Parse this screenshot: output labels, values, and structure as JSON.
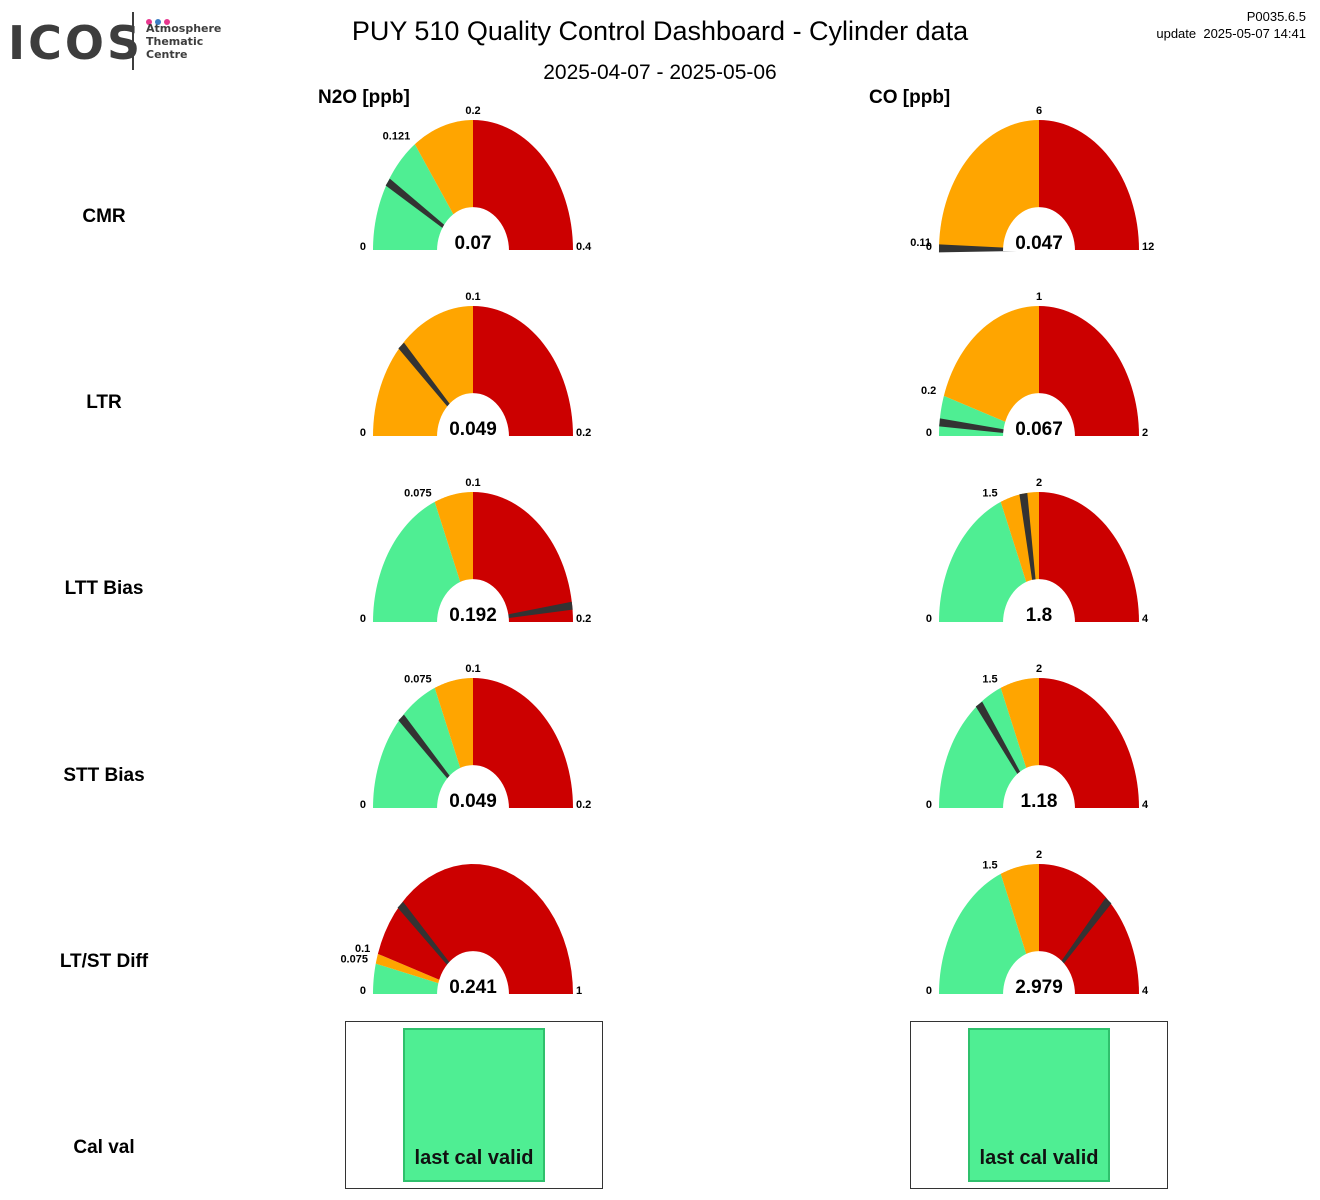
{
  "header": {
    "logo": {
      "text": "ICOS",
      "lines": [
        "Atmosphere",
        "Thematic",
        "Centre"
      ],
      "dot_colors": [
        "#e7368e",
        "#3a7cc3",
        "#e7368e"
      ]
    },
    "title": "PUY 510 Quality Control Dashboard - Cylinder data",
    "subtitle": "2025-04-07 - 2025-05-06",
    "version": "P0035.6.5",
    "update": "update  2025-05-07 14:41"
  },
  "colors": {
    "ok": "#4fee93",
    "warn": "#ffa500",
    "bad": "#cc0000",
    "needle": "#333333"
  },
  "columns": [
    {
      "header": "N2O [ppb]",
      "gauges": [
        {
          "row": "CMR",
          "min_label": "0",
          "max_label": "0.4",
          "min": 0,
          "max": 0.4,
          "value": 0.07,
          "value_label": "0.07",
          "thresholds": [
            0.121,
            0.2
          ],
          "threshold_labels": [
            "0.121",
            "0.2"
          ],
          "zones": [
            "ok",
            "warn",
            "bad"
          ]
        },
        {
          "row": "LTR",
          "min_label": "0",
          "max_label": "0.2",
          "min": 0,
          "max": 0.2,
          "value": 0.049,
          "value_label": "0.049",
          "thresholds": [
            0.1
          ],
          "threshold_labels": [
            "0.1"
          ],
          "zones": [
            "warn",
            "bad"
          ]
        },
        {
          "row": "LTT Bias",
          "min_label": "0",
          "max_label": "0.2",
          "min": 0,
          "max": 0.2,
          "value": 0.192,
          "value_label": "0.192",
          "thresholds": [
            0.075,
            0.1
          ],
          "threshold_labels": [
            "0.075",
            "0.1"
          ],
          "zones": [
            "ok",
            "warn",
            "bad"
          ]
        },
        {
          "row": "STT Bias",
          "min_label": "0",
          "max_label": "0.2",
          "min": 0,
          "max": 0.2,
          "value": 0.049,
          "value_label": "0.049",
          "thresholds": [
            0.075,
            0.1
          ],
          "threshold_labels": [
            "0.075",
            "0.1"
          ],
          "zones": [
            "ok",
            "warn",
            "bad"
          ]
        },
        {
          "row": "LT/ST Diff",
          "min_label": "0",
          "max_label": "1",
          "min": 0,
          "max": 1,
          "value": 0.241,
          "value_label": "0.241",
          "thresholds": [
            0.075,
            0.1
          ],
          "threshold_labels": [
            "0.075",
            "0.1"
          ],
          "zones": [
            "ok",
            "warn",
            "bad"
          ]
        }
      ],
      "cal": "last cal valid"
    },
    {
      "header": "CO [ppb]",
      "gauges": [
        {
          "row": "CMR",
          "min_label": "0",
          "max_label": "12",
          "min": 0,
          "max": 12,
          "value": 0.047,
          "value_label": "0.047",
          "thresholds": [
            0.11,
            6
          ],
          "threshold_labels": [
            "0.11",
            "6"
          ],
          "zones": [
            "ok",
            "warn",
            "bad"
          ]
        },
        {
          "row": "LTR",
          "min_label": "0",
          "max_label": "2",
          "min": 0,
          "max": 2,
          "value": 0.067,
          "value_label": "0.067",
          "thresholds": [
            0.2,
            1
          ],
          "threshold_labels": [
            "0.2",
            "1"
          ],
          "zones": [
            "ok",
            "warn",
            "bad"
          ]
        },
        {
          "row": "LTT Bias",
          "min_label": "0",
          "max_label": "4",
          "min": 0,
          "max": 4,
          "value": 1.8,
          "value_label": "1.8",
          "thresholds": [
            1.5,
            2
          ],
          "threshold_labels": [
            "1.5",
            "2"
          ],
          "zones": [
            "ok",
            "warn",
            "bad"
          ]
        },
        {
          "row": "STT Bias",
          "min_label": "0",
          "max_label": "4",
          "min": 0,
          "max": 4,
          "value": 1.18,
          "value_label": "1.18",
          "thresholds": [
            1.5,
            2
          ],
          "threshold_labels": [
            "1.5",
            "2"
          ],
          "zones": [
            "ok",
            "warn",
            "bad"
          ]
        },
        {
          "row": "LT/ST Diff",
          "min_label": "0",
          "max_label": "4",
          "min": 0,
          "max": 4,
          "value": 2.979,
          "value_label": "2.979",
          "thresholds": [
            1.5,
            2
          ],
          "threshold_labels": [
            "1.5",
            "2"
          ],
          "zones": [
            "ok",
            "warn",
            "bad"
          ]
        }
      ],
      "cal": "last cal valid"
    }
  ],
  "rows": [
    "CMR",
    "LTR",
    "LTT Bias",
    "STT Bias",
    "LT/ST Diff",
    "Cal val"
  ],
  "chart_data": [
    {
      "type": "gauge",
      "group": "N2O [ppb]",
      "series": [
        {
          "name": "CMR",
          "values": [
            0.07
          ]
        },
        {
          "name": "LTR",
          "values": [
            0.049
          ]
        },
        {
          "name": "LTT Bias",
          "values": [
            0.192
          ]
        },
        {
          "name": "STT Bias",
          "values": [
            0.049
          ]
        },
        {
          "name": "LT/ST Diff",
          "values": [
            0.241
          ]
        }
      ]
    },
    {
      "type": "gauge",
      "group": "CO [ppb]",
      "series": [
        {
          "name": "CMR",
          "values": [
            0.047
          ]
        },
        {
          "name": "LTR",
          "values": [
            0.067
          ]
        },
        {
          "name": "LTT Bias",
          "values": [
            1.8
          ]
        },
        {
          "name": "STT Bias",
          "values": [
            1.18
          ]
        },
        {
          "name": "LT/ST Diff",
          "values": [
            2.979
          ]
        }
      ]
    }
  ]
}
